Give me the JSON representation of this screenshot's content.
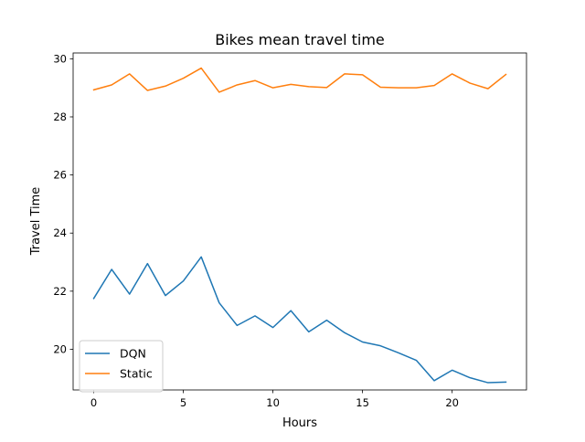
{
  "chart_data": {
    "type": "line",
    "title": "Bikes mean travel time",
    "xlabel": "Hours",
    "ylabel": "Travel Time",
    "xlim": [
      -1.15,
      24.15
    ],
    "ylim": [
      18.6,
      30.2
    ],
    "xticks": [
      0,
      5,
      10,
      15,
      20
    ],
    "yticks": [
      20,
      22,
      24,
      26,
      28,
      30
    ],
    "grid": false,
    "legend_position": "lower-left",
    "x": [
      0,
      1,
      2,
      3,
      4,
      5,
      6,
      7,
      8,
      9,
      10,
      11,
      12,
      13,
      14,
      15,
      16,
      17,
      18,
      19,
      20,
      21,
      22,
      23
    ],
    "series": [
      {
        "name": "DQN",
        "color": "#1f77b4",
        "values": [
          21.75,
          22.75,
          21.9,
          22.95,
          21.85,
          22.35,
          23.18,
          21.6,
          20.82,
          21.15,
          20.75,
          21.33,
          20.6,
          21.0,
          20.57,
          20.25,
          20.12,
          19.88,
          19.62,
          18.92,
          19.28,
          19.02,
          18.85,
          18.87
        ]
      },
      {
        "name": "Static",
        "color": "#ff7f0e",
        "values": [
          28.93,
          29.1,
          29.48,
          28.91,
          29.06,
          29.33,
          29.68,
          28.85,
          29.1,
          29.25,
          29.0,
          29.12,
          29.04,
          29.01,
          29.48,
          29.45,
          29.02,
          29.0,
          29.0,
          29.08,
          29.48,
          29.16,
          28.97,
          29.46
        ]
      }
    ]
  }
}
